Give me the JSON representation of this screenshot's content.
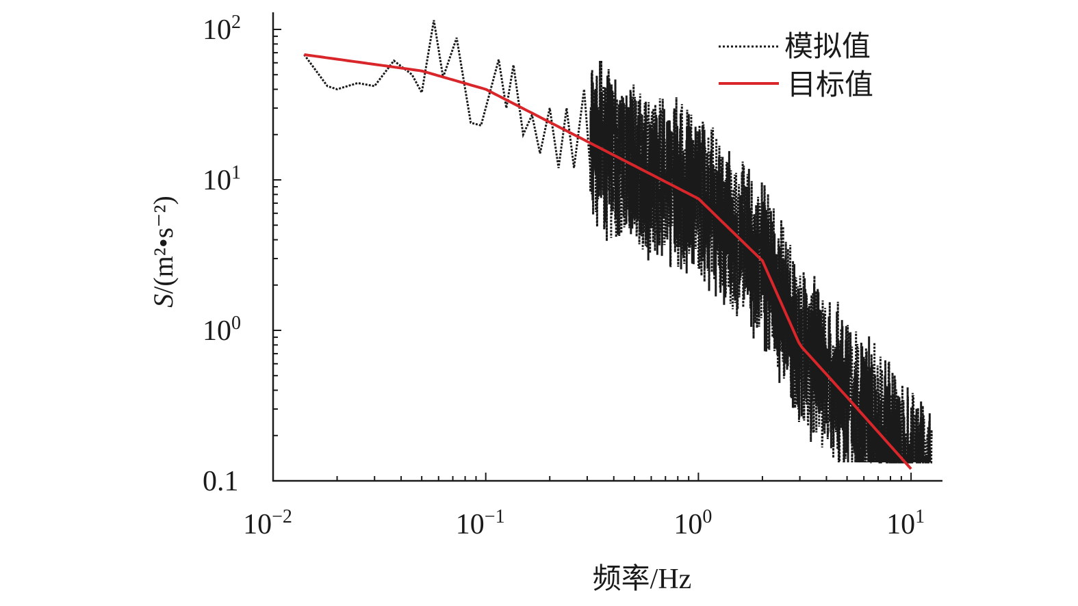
{
  "chart_data": {
    "type": "line",
    "xscale": "log",
    "yscale": "log",
    "xlabel": "频率/Hz",
    "ylabel_italic": "S",
    "ylabel_rest": "/(m²•s⁻²)",
    "xlim": [
      0.01,
      13.5
    ],
    "ylim": [
      0.1,
      130
    ],
    "x_ticks": [
      {
        "base": "10",
        "exp": "−2",
        "v": 0.01
      },
      {
        "base": "10",
        "exp": "−1",
        "v": 0.1
      },
      {
        "base": "10",
        "exp": "0",
        "v": 1
      },
      {
        "base": "10",
        "exp": "1",
        "v": 10
      }
    ],
    "y_ticks": [
      {
        "base": "10",
        "exp": "2",
        "v": 100
      },
      {
        "base": "10",
        "exp": "1",
        "v": 10
      },
      {
        "base": "10",
        "exp": "0",
        "v": 1
      },
      {
        "base": "0.1",
        "exp": "",
        "v": 0.1
      }
    ],
    "legend_position": "top-right",
    "series": [
      {
        "name": "模拟值",
        "style": "dotted",
        "color": "#1a1a1a",
        "x": [
          0.014,
          0.018,
          0.02,
          0.025,
          0.03,
          0.037,
          0.045,
          0.05,
          0.057,
          0.063,
          0.073,
          0.085,
          0.095,
          0.115,
          0.125,
          0.135,
          0.15,
          0.165,
          0.18,
          0.2,
          0.22,
          0.24,
          0.26,
          0.29,
          0.31
        ],
        "y": [
          68,
          42,
          40,
          44,
          42,
          62,
          50,
          38,
          115,
          48,
          88,
          24,
          23,
          63,
          30,
          58,
          20,
          27,
          15,
          30,
          12,
          30,
          12,
          40,
          12
        ],
        "dense_range": [
          0.31,
          12.5
        ]
      },
      {
        "name": "目标值",
        "style": "solid",
        "color": "#d9262b",
        "x": [
          0.014,
          0.05,
          0.1,
          0.3,
          1,
          2,
          3,
          5,
          10
        ],
        "y": [
          68,
          53,
          40,
          18,
          7.5,
          2.9,
          0.8,
          0.36,
          0.12
        ]
      }
    ]
  }
}
